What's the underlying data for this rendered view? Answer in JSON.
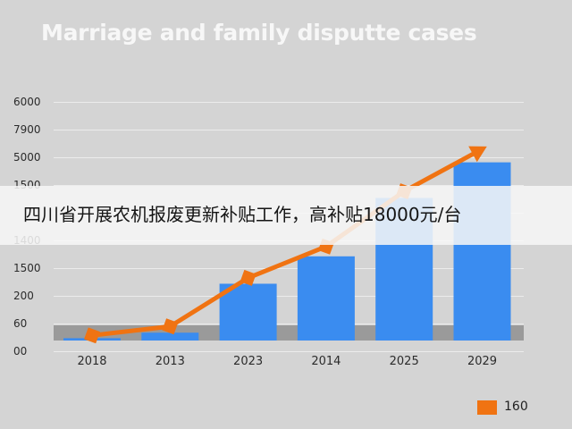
{
  "chart_data": {
    "type": "bar",
    "title": "Marriage and family disputte cases",
    "categories": [
      "2018",
      "2013",
      "2023",
      "2014",
      "2025",
      "2029"
    ],
    "y_tick_labels": [
      "6000",
      "7900",
      "5000",
      "1500",
      "",
      "1400",
      "1500",
      "200",
      "60",
      "00"
    ],
    "series": [
      {
        "type": "bar",
        "values": [
          60,
          200,
          1450,
          2150,
          3640,
          4550
        ],
        "color": "#3a8cf0"
      },
      {
        "type": "line",
        "name": "160",
        "values": [
          130,
          360,
          1600,
          2400,
          3810,
          4890
        ],
        "color": "#f07312"
      }
    ],
    "ylim": [
      0,
      5500
    ],
    "grid": true,
    "legend_position": "bottom-right"
  },
  "overlay": {
    "text": "四川省开展农机报废更新补贴工作，高补贴18000元/台"
  }
}
